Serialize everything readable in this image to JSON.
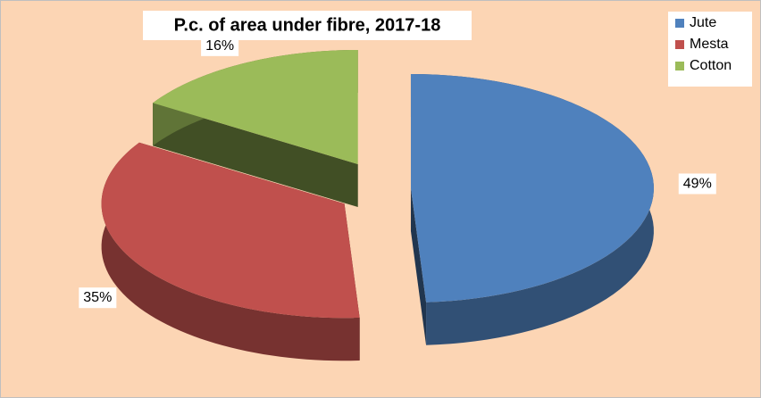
{
  "chart_data": {
    "type": "pie",
    "title": "P.c. of area under fibre, 2017-18",
    "categories": [
      "Jute",
      "Mesta",
      "Cotton"
    ],
    "values": [
      49,
      35,
      16
    ],
    "value_labels": [
      "49%",
      "35%",
      "16%"
    ],
    "colors": [
      "#4f81bd",
      "#c0504d",
      "#9bbb59"
    ],
    "legend": "top-right"
  }
}
